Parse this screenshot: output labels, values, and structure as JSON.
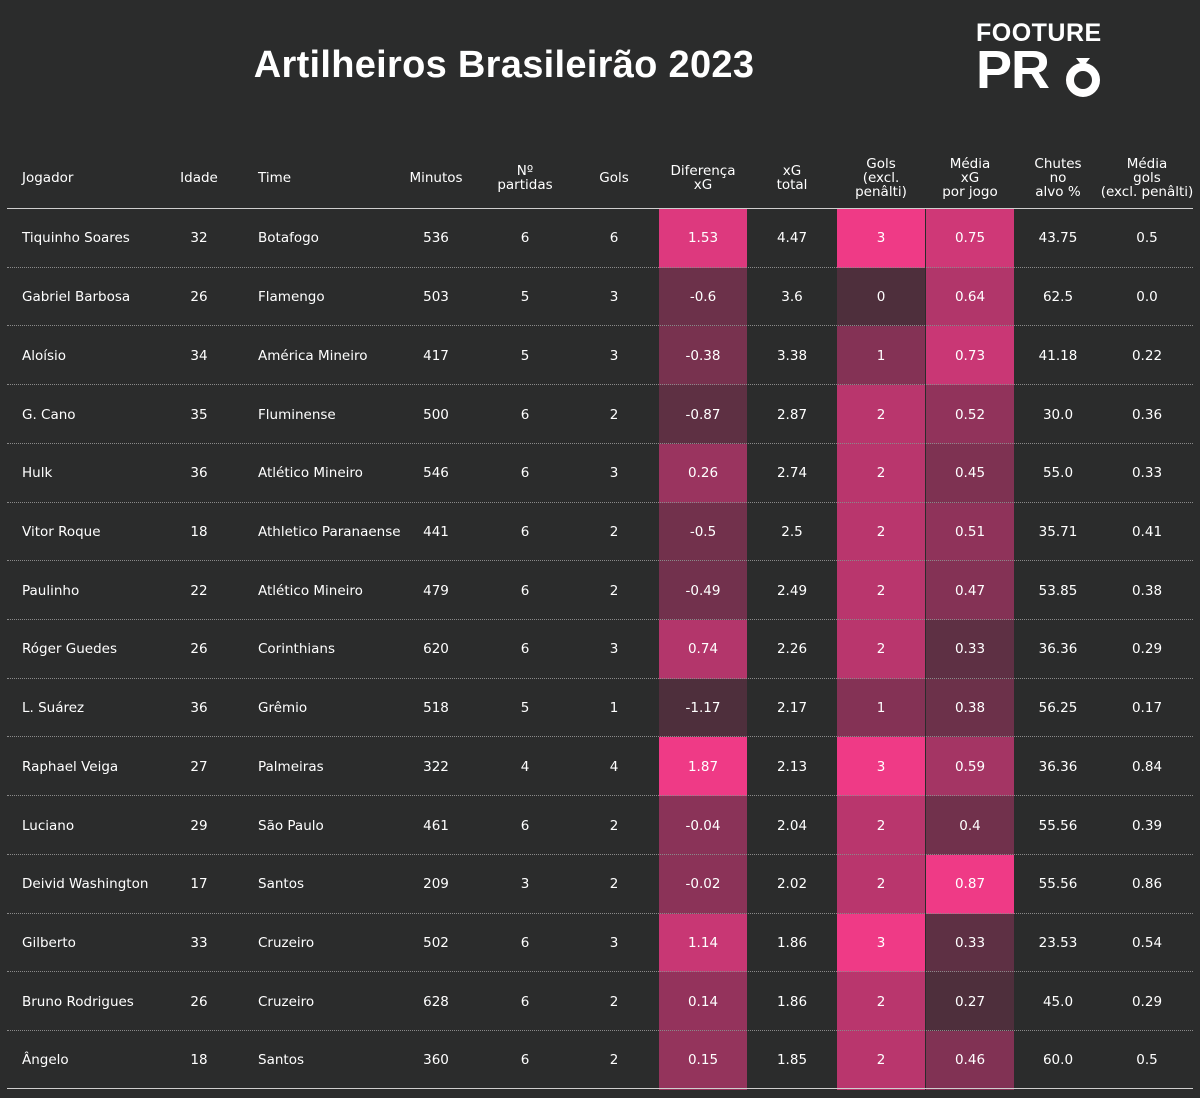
{
  "title": "Artilheiros Brasileirão 2023",
  "logo": {
    "line1": "FOOTURE",
    "line2": "PR"
  },
  "colors": {
    "background": "#2b2c2c",
    "heat_min": "#2b2c2c",
    "heat_max": "#ef3a86"
  },
  "chart_data": {
    "type": "table",
    "columns": [
      {
        "key": "jogador",
        "label": "Jogador"
      },
      {
        "key": "idade",
        "label": "Idade"
      },
      {
        "key": "time",
        "label": "Time"
      },
      {
        "key": "minutos",
        "label": "Minutos"
      },
      {
        "key": "partidas",
        "label": "Nº\npartidas"
      },
      {
        "key": "gols",
        "label": "Gols"
      },
      {
        "key": "dif_xg",
        "label": "Diferença\nxG",
        "heatmap": true
      },
      {
        "key": "xg_total",
        "label": "xG\ntotal"
      },
      {
        "key": "gols_excl",
        "label": "Gols\n(excl.\npenâlti)",
        "heatmap": true
      },
      {
        "key": "media_xg",
        "label": "Média\nxG\npor jogo",
        "heatmap": true
      },
      {
        "key": "chutes",
        "label": "Chutes\nno\nalvo %"
      },
      {
        "key": "media_gols",
        "label": "Média\ngols\n(excl. penâlti)"
      }
    ],
    "rows": [
      {
        "jogador": "Tiquinho Soares",
        "idade": "32",
        "time": "Botafogo",
        "minutos": "536",
        "partidas": "6",
        "gols": "6",
        "dif_xg": "1.53",
        "xg_total": "4.47",
        "gols_excl": "3",
        "media_xg": "0.75",
        "chutes": "43.75",
        "media_gols": "0.5"
      },
      {
        "jogador": "Gabriel Barbosa",
        "idade": "26",
        "time": "Flamengo",
        "minutos": "503",
        "partidas": "5",
        "gols": "3",
        "dif_xg": "-0.6",
        "xg_total": "3.6",
        "gols_excl": "0",
        "media_xg": "0.64",
        "chutes": "62.5",
        "media_gols": "0.0"
      },
      {
        "jogador": "Aloísio",
        "idade": "34",
        "time": "América Mineiro",
        "minutos": "417",
        "partidas": "5",
        "gols": "3",
        "dif_xg": "-0.38",
        "xg_total": "3.38",
        "gols_excl": "1",
        "media_xg": "0.73",
        "chutes": "41.18",
        "media_gols": "0.22"
      },
      {
        "jogador": "G. Cano",
        "idade": "35",
        "time": "Fluminense",
        "minutos": "500",
        "partidas": "6",
        "gols": "2",
        "dif_xg": "-0.87",
        "xg_total": "2.87",
        "gols_excl": "2",
        "media_xg": "0.52",
        "chutes": "30.0",
        "media_gols": "0.36"
      },
      {
        "jogador": "Hulk",
        "idade": "36",
        "time": "Atlético Mineiro",
        "minutos": "546",
        "partidas": "6",
        "gols": "3",
        "dif_xg": "0.26",
        "xg_total": "2.74",
        "gols_excl": "2",
        "media_xg": "0.45",
        "chutes": "55.0",
        "media_gols": "0.33"
      },
      {
        "jogador": "Vitor Roque",
        "idade": "18",
        "time": "Athletico Paranaense",
        "minutos": "441",
        "partidas": "6",
        "gols": "2",
        "dif_xg": "-0.5",
        "xg_total": "2.5",
        "gols_excl": "2",
        "media_xg": "0.51",
        "chutes": "35.71",
        "media_gols": "0.41"
      },
      {
        "jogador": "Paulinho",
        "idade": "22",
        "time": "Atlético Mineiro",
        "minutos": "479",
        "partidas": "6",
        "gols": "2",
        "dif_xg": "-0.49",
        "xg_total": "2.49",
        "gols_excl": "2",
        "media_xg": "0.47",
        "chutes": "53.85",
        "media_gols": "0.38"
      },
      {
        "jogador": "Róger Guedes",
        "idade": "26",
        "time": "Corinthians",
        "minutos": "620",
        "partidas": "6",
        "gols": "3",
        "dif_xg": "0.74",
        "xg_total": "2.26",
        "gols_excl": "2",
        "media_xg": "0.33",
        "chutes": "36.36",
        "media_gols": "0.29"
      },
      {
        "jogador": "L. Suárez",
        "idade": "36",
        "time": "Grêmio",
        "minutos": "518",
        "partidas": "5",
        "gols": "1",
        "dif_xg": "-1.17",
        "xg_total": "2.17",
        "gols_excl": "1",
        "media_xg": "0.38",
        "chutes": "56.25",
        "media_gols": "0.17"
      },
      {
        "jogador": "Raphael Veiga",
        "idade": "27",
        "time": "Palmeiras",
        "minutos": "322",
        "partidas": "4",
        "gols": "4",
        "dif_xg": "1.87",
        "xg_total": "2.13",
        "gols_excl": "3",
        "media_xg": "0.59",
        "chutes": "36.36",
        "media_gols": "0.84"
      },
      {
        "jogador": "Luciano",
        "idade": "29",
        "time": "São Paulo",
        "minutos": "461",
        "partidas": "6",
        "gols": "2",
        "dif_xg": "-0.04",
        "xg_total": "2.04",
        "gols_excl": "2",
        "media_xg": "0.4",
        "chutes": "55.56",
        "media_gols": "0.39"
      },
      {
        "jogador": "Deivid Washington",
        "idade": "17",
        "time": "Santos",
        "minutos": "209",
        "partidas": "3",
        "gols": "2",
        "dif_xg": "-0.02",
        "xg_total": "2.02",
        "gols_excl": "2",
        "media_xg": "0.87",
        "chutes": "55.56",
        "media_gols": "0.86"
      },
      {
        "jogador": "Gilberto",
        "idade": "33",
        "time": "Cruzeiro",
        "minutos": "502",
        "partidas": "6",
        "gols": "3",
        "dif_xg": "1.14",
        "xg_total": "1.86",
        "gols_excl": "3",
        "media_xg": "0.33",
        "chutes": "23.53",
        "media_gols": "0.54"
      },
      {
        "jogador": "Bruno Rodrigues",
        "idade": "26",
        "time": "Cruzeiro",
        "minutos": "628",
        "partidas": "6",
        "gols": "2",
        "dif_xg": "0.14",
        "xg_total": "1.86",
        "gols_excl": "2",
        "media_xg": "0.27",
        "chutes": "45.0",
        "media_gols": "0.29"
      },
      {
        "jogador": "Ângelo",
        "idade": "18",
        "time": "Santos",
        "minutos": "360",
        "partidas": "6",
        "gols": "2",
        "dif_xg": "0.15",
        "xg_total": "1.85",
        "gols_excl": "2",
        "media_xg": "0.46",
        "chutes": "60.0",
        "media_gols": "0.5"
      }
    ]
  }
}
